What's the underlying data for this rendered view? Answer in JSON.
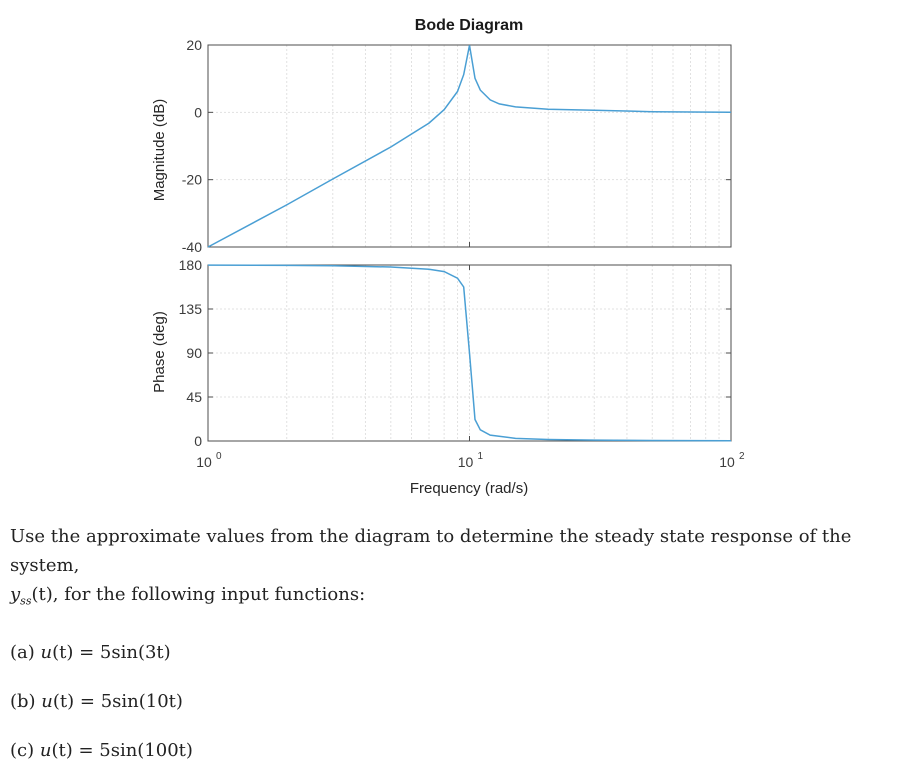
{
  "chart_data": {
    "type": "line",
    "title": "Bode Diagram",
    "xlabel": "Frequency (rad/s)",
    "xscale": "log",
    "xlim": [
      1,
      100
    ],
    "xticks": [
      {
        "value": 1,
        "base": "10",
        "exp": "0"
      },
      {
        "value": 10,
        "base": "10",
        "exp": "1"
      },
      {
        "value": 100,
        "base": "10",
        "exp": "2"
      }
    ],
    "panels": [
      {
        "name": "magnitude",
        "ylabel": "Magnitude (dB)",
        "ylim": [
          -40,
          20
        ],
        "yticks": [
          "20",
          "0",
          "-20",
          "-40"
        ],
        "x": [
          1,
          2,
          3,
          5,
          7,
          8,
          9,
          9.5,
          10,
          10.5,
          11,
          12,
          13,
          15,
          20,
          30,
          50,
          100
        ],
        "y": [
          -40,
          -27.5,
          -19.8,
          -10.3,
          -3.2,
          0.8,
          6.2,
          11.2,
          19.9,
          10.1,
          6.6,
          3.7,
          2.5,
          1.6,
          0.9,
          0.6,
          0.2,
          0
        ]
      },
      {
        "name": "phase",
        "ylabel": "Phase (deg)",
        "ylim": [
          0,
          180
        ],
        "yticks": [
          "180",
          "135",
          "90",
          "45",
          "0"
        ],
        "x": [
          1,
          2,
          3,
          5,
          7,
          8,
          9,
          9.5,
          10,
          10.5,
          11,
          12,
          15,
          20,
          30,
          50,
          100
        ],
        "y": [
          179.9,
          179.6,
          179.2,
          178,
          175.6,
          173.3,
          166.5,
          157.5,
          90,
          22,
          11.5,
          6,
          2.7,
          1.5,
          0.9,
          0.5,
          0.2
        ]
      }
    ],
    "grid": true
  },
  "question": {
    "intro": "Use the approximate values from the diagram to determine the steady state response of the system,",
    "yss_y": "y",
    "yss_sub": "ss",
    "yss_arg": "(t)",
    "intro_tail": ", for the following input functions:",
    "parts": [
      {
        "label": "(a) ",
        "func": "u",
        "arg": "(t)",
        "rhs": " = 5sin(3t)"
      },
      {
        "label": "(b) ",
        "func": "u",
        "arg": "(t)",
        "rhs": " = 5sin(10t)"
      },
      {
        "label": "(c) ",
        "func": "u",
        "arg": "(t)",
        "rhs": " = 5sin(100t)"
      }
    ]
  }
}
